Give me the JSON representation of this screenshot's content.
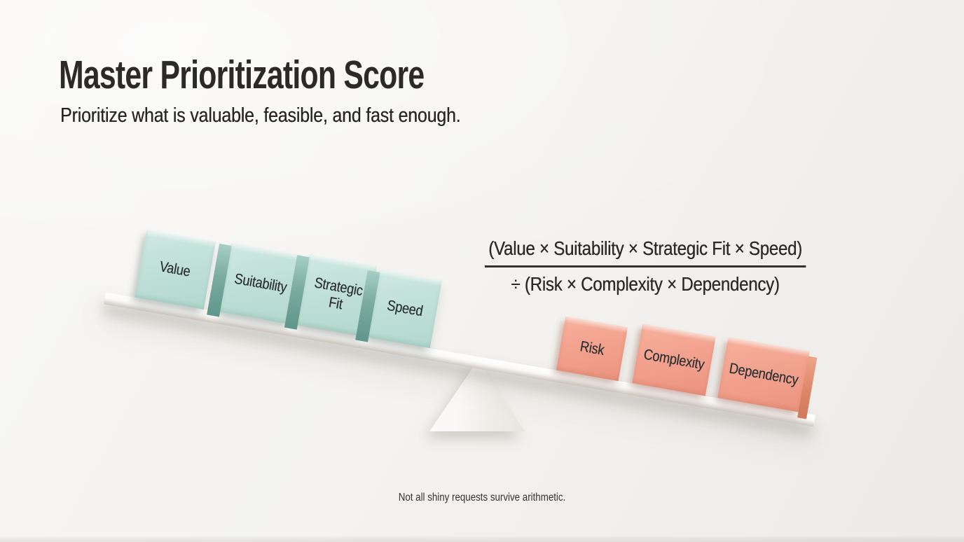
{
  "slide": {
    "title": "Master Prioritization Score",
    "subtitle": "Prioritize what is valuable, feasible, and fast enough.",
    "formula": {
      "numerator": "(Value × Suitability × Strategic Fit × Speed)",
      "denominator": "÷ (Risk × Complexity × Dependency)"
    },
    "seesaw": {
      "left_blocks": [
        {
          "label": "Value"
        },
        {
          "label": "Suitability"
        },
        {
          "label": "Strategic Fit"
        },
        {
          "label": "Speed"
        }
      ],
      "right_blocks": [
        {
          "label": "Risk"
        },
        {
          "label": "Complexity"
        },
        {
          "label": "Dependency"
        }
      ]
    },
    "footer": "Not all shiny requests survive arithmetic.",
    "colors": {
      "background": "#f4f3f0",
      "mint_block": "#c1e1d9",
      "mint_block_side": "#7cab9f",
      "salmon_block": "#f2a28e",
      "salmon_block_side": "#d07a5e",
      "plank": "#fbfaf8",
      "fulcrum": "#f7f5f2",
      "heading_text": "#2b2a28",
      "block_text": "#2e3235"
    }
  }
}
